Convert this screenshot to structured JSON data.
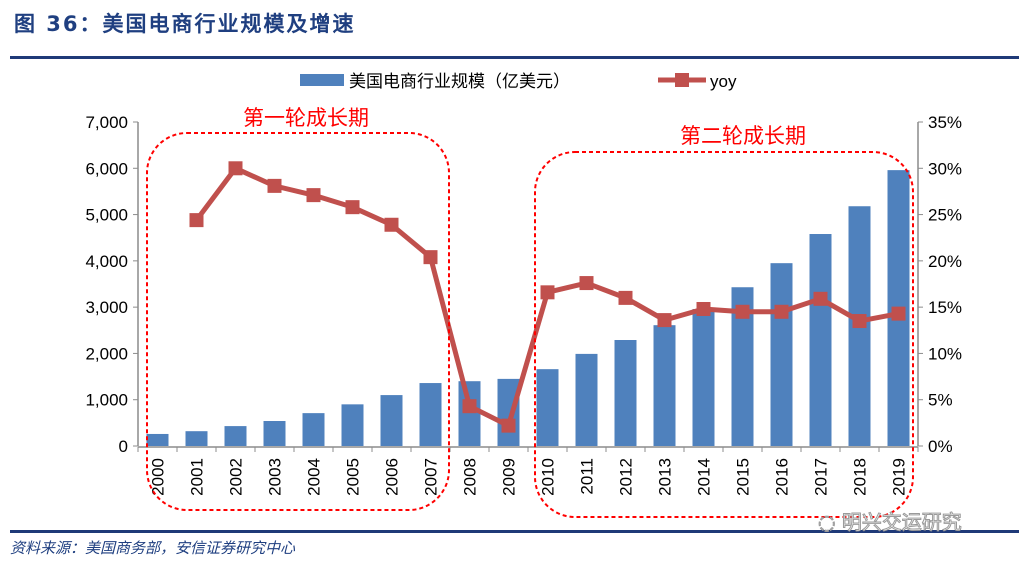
{
  "header": {
    "title": "图 36：美国电商行业规模及增速"
  },
  "footer": {
    "source": "资料来源：美国商务部，安信证券研究中心",
    "watermark": "明兴交运研究"
  },
  "annotations": [
    {
      "label": "第一轮成长期"
    },
    {
      "label": "第二轮成长期"
    }
  ],
  "chart_data": {
    "type": "bar+line",
    "categories": [
      "2000",
      "2001",
      "2002",
      "2003",
      "2004",
      "2005",
      "2006",
      "2007",
      "2008",
      "2009",
      "2010",
      "2011",
      "2012",
      "2013",
      "2014",
      "2015",
      "2016",
      "2017",
      "2018",
      "2019"
    ],
    "series": [
      {
        "name": "美国电商行业规模（亿美元）",
        "type": "bar",
        "axis": "left",
        "color": "#4f81bd",
        "values": [
          260,
          320,
          430,
          540,
          710,
          900,
          1100,
          1360,
          1400,
          1450,
          1660,
          1990,
          2290,
          2610,
          2960,
          3430,
          3950,
          4580,
          5180,
          5960
        ]
      },
      {
        "name": "yoy",
        "type": "line",
        "axis": "right",
        "color": "#c0504d",
        "values": [
          null,
          24.4,
          30.0,
          28.1,
          27.1,
          25.8,
          23.9,
          20.4,
          4.3,
          2.2,
          16.6,
          17.6,
          16.0,
          13.6,
          14.8,
          14.5,
          14.5,
          15.9,
          13.5,
          14.3
        ]
      }
    ],
    "y_left": {
      "range": [
        0,
        7000
      ],
      "ticks": [
        "0",
        "1,000",
        "2,000",
        "3,000",
        "4,000",
        "5,000",
        "6,000",
        "7,000"
      ]
    },
    "y_right": {
      "range": [
        0,
        35
      ],
      "unit": "%",
      "ticks": [
        "0%",
        "5%",
        "10%",
        "15%",
        "20%",
        "25%",
        "30%",
        "35%"
      ]
    },
    "legend": "top-center",
    "grid": false
  }
}
